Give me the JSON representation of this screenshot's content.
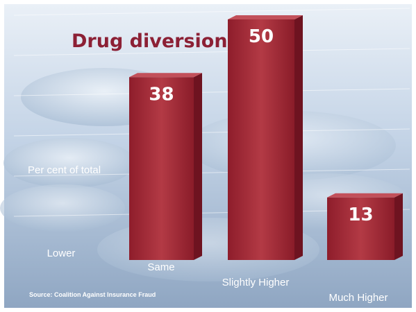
{
  "chart_data": {
    "type": "bar",
    "title": "Drug diversion",
    "ylabel": "Per cent of total",
    "categories": [
      "Lower",
      "Same",
      "Slightly Higher",
      "Much Higher"
    ],
    "values": [
      0,
      38,
      50,
      13
    ],
    "value_labels": [
      "",
      "38",
      "50",
      "13"
    ],
    "ylim": [
      0,
      55
    ],
    "grid": true,
    "source": "Source: Coalition Against Insurance Fraud",
    "colors": {
      "bar": "#a52a36",
      "bar_dark": "#6e1320",
      "title": "#8c2035",
      "background": "#b9c9dc"
    }
  }
}
